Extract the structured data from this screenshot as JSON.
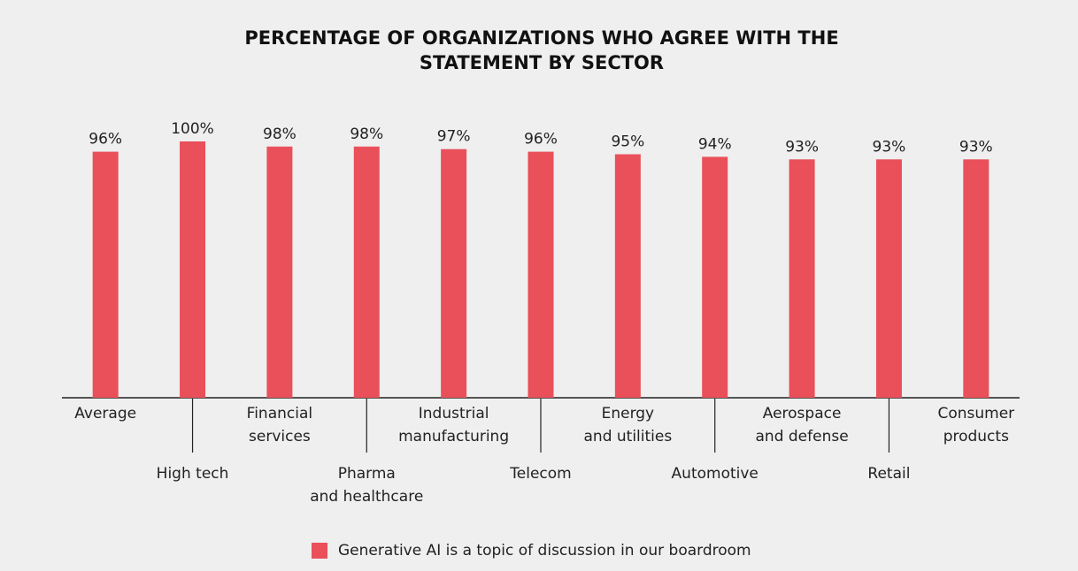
{
  "chart_data": {
    "type": "bar",
    "title": "PERCENTAGE OF ORGANIZATIONS WHO AGREE WITH THE STATEMENT BY SECTOR",
    "categories": [
      "Average",
      "High tech",
      "Financial services",
      "Pharma and healthcare",
      "Industrial manufacturing",
      "Telecom",
      "Energy and utilities",
      "Automotive",
      "Aerospace and defense",
      "Retail",
      "Consumer products"
    ],
    "series": [
      {
        "name": "Generative AI is a topic of discussion in our boardroom",
        "color": "#e9505a",
        "values": [
          96,
          100,
          98,
          98,
          97,
          96,
          95,
          94,
          93,
          93,
          93
        ],
        "value_labels": [
          "96%",
          "100%",
          "98%",
          "98%",
          "97%",
          "96%",
          "95%",
          "94%",
          "93%",
          "93%",
          "93%"
        ]
      }
    ],
    "ylim": [
      0,
      100
    ]
  }
}
